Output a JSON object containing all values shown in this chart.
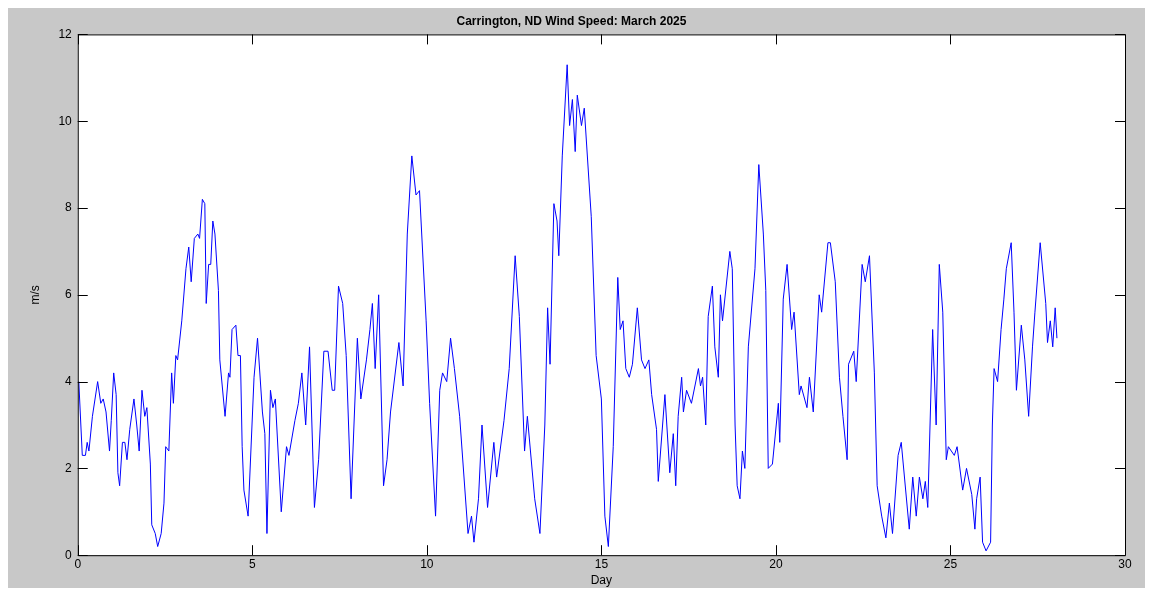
{
  "chart_data": {
    "type": "line",
    "title": "Carrington, ND Wind Speed: March 2025",
    "xlabel": "Day",
    "ylabel": "m/s",
    "xlim": [
      0,
      30
    ],
    "ylim": [
      0,
      12
    ],
    "xticks": [
      0,
      5,
      10,
      15,
      20,
      25,
      30
    ],
    "yticks": [
      0,
      2,
      4,
      6,
      8,
      10,
      12
    ],
    "grid": false,
    "series": [
      {
        "color": "#0000ff",
        "x": [
          0.03,
          0.13,
          0.22,
          0.27,
          0.32,
          0.42,
          0.57,
          0.66,
          0.73,
          0.81,
          0.91,
          0.96,
          1.03,
          1.1,
          1.15,
          1.2,
          1.28,
          1.35,
          1.41,
          1.49,
          1.61,
          1.69,
          1.76,
          1.84,
          1.92,
          1.98,
          2.08,
          2.12,
          2.22,
          2.29,
          2.39,
          2.47,
          2.52,
          2.61,
          2.69,
          2.74,
          2.81,
          2.86,
          2.98,
          3.1,
          3.18,
          3.25,
          3.34,
          3.44,
          3.49,
          3.57,
          3.64,
          3.68,
          3.75,
          3.81,
          3.87,
          3.93,
          4.03,
          4.07,
          4.22,
          4.32,
          4.36,
          4.42,
          4.53,
          4.59,
          4.66,
          4.71,
          4.76,
          4.88,
          5.05,
          5.15,
          5.29,
          5.36,
          5.42,
          5.52,
          5.59,
          5.66,
          5.83,
          5.98,
          6.05,
          6.22,
          6.32,
          6.42,
          6.53,
          6.64,
          6.78,
          6.9,
          7.05,
          7.17,
          7.29,
          7.36,
          7.47,
          7.59,
          7.69,
          7.83,
          8.01,
          8.11,
          8.27,
          8.37,
          8.44,
          8.52,
          8.62,
          8.76,
          8.86,
          8.96,
          9.2,
          9.32,
          9.44,
          9.57,
          9.69,
          9.79,
          9.98,
          10.08,
          10.25,
          10.37,
          10.45,
          10.57,
          10.68,
          10.79,
          10.94,
          11.18,
          11.28,
          11.35,
          11.48,
          11.58,
          11.74,
          11.92,
          12.0,
          12.21,
          12.36,
          12.53,
          12.65,
          12.8,
          12.88,
          13.09,
          13.24,
          13.38,
          13.46,
          13.53,
          13.64,
          13.73,
          13.78,
          13.88,
          14.02,
          14.09,
          14.17,
          14.25,
          14.31,
          14.43,
          14.51,
          14.71,
          14.85,
          15.0,
          15.1,
          15.2,
          15.34,
          15.47,
          15.54,
          15.62,
          15.7,
          15.8,
          15.89,
          16.03,
          16.15,
          16.25,
          16.36,
          16.44,
          16.58,
          16.63,
          16.82,
          16.96,
          17.06,
          17.13,
          17.2,
          17.3,
          17.35,
          17.44,
          17.58,
          17.78,
          17.84,
          17.9,
          17.99,
          18.06,
          18.18,
          18.25,
          18.35,
          18.41,
          18.47,
          18.68,
          18.75,
          18.83,
          18.89,
          18.97,
          19.04,
          19.11,
          19.21,
          19.4,
          19.51,
          19.64,
          19.71,
          19.78,
          19.9,
          20.07,
          20.11,
          20.21,
          20.32,
          20.45,
          20.52,
          20.67,
          20.72,
          20.89,
          20.96,
          21.07,
          21.24,
          21.31,
          21.49,
          21.56,
          21.7,
          21.82,
          21.92,
          22.04,
          22.08,
          22.23,
          22.3,
          22.47,
          22.56,
          22.68,
          22.82,
          22.9,
          23.03,
          23.15,
          23.25,
          23.34,
          23.5,
          23.59,
          23.82,
          23.92,
          24.02,
          24.11,
          24.21,
          24.28,
          24.35,
          24.49,
          24.59,
          24.68,
          24.78,
          24.88,
          24.94,
          25.11,
          25.19,
          25.35,
          25.46,
          25.61,
          25.7,
          25.75,
          25.85,
          25.92,
          26.02,
          26.15,
          26.2,
          26.25,
          26.35,
          26.45,
          26.53,
          26.6,
          26.74,
          26.82,
          26.89,
          27.03,
          27.13,
          27.24,
          27.35,
          27.42,
          27.57,
          27.73,
          27.78,
          27.86,
          27.93,
          28.0,
          28.05
        ],
        "values": [
          4.0,
          2.3,
          2.3,
          2.6,
          2.4,
          3.2,
          4.0,
          3.5,
          3.6,
          3.3,
          2.4,
          3.1,
          4.2,
          3.7,
          1.9,
          1.6,
          2.6,
          2.6,
          2.2,
          2.9,
          3.6,
          3.0,
          2.4,
          3.8,
          3.2,
          3.4,
          2.1,
          0.7,
          0.5,
          0.2,
          0.5,
          1.2,
          2.5,
          2.4,
          4.2,
          3.5,
          4.6,
          4.5,
          5.4,
          6.6,
          7.1,
          6.3,
          7.3,
          7.4,
          7.3,
          8.2,
          8.1,
          5.8,
          6.7,
          6.7,
          7.7,
          7.4,
          6.1,
          4.5,
          3.2,
          4.2,
          4.1,
          5.2,
          5.3,
          4.6,
          4.6,
          2.5,
          1.5,
          0.9,
          4.1,
          5.0,
          3.3,
          2.8,
          0.5,
          3.8,
          3.4,
          3.6,
          1.0,
          2.5,
          2.3,
          3.1,
          3.5,
          4.2,
          3.0,
          4.8,
          1.1,
          2.2,
          4.7,
          4.7,
          3.8,
          3.8,
          6.2,
          5.8,
          4.6,
          1.3,
          5.0,
          3.6,
          4.5,
          5.2,
          5.8,
          4.3,
          6.0,
          1.6,
          2.2,
          3.3,
          4.9,
          3.9,
          7.4,
          9.2,
          8.3,
          8.4,
          5.4,
          3.5,
          0.9,
          3.8,
          4.2,
          4.0,
          5.0,
          4.3,
          3.2,
          0.5,
          0.9,
          0.3,
          1.3,
          3.0,
          1.1,
          2.6,
          1.8,
          3.1,
          4.3,
          6.9,
          5.5,
          2.4,
          3.2,
          1.3,
          0.5,
          3.0,
          5.7,
          4.4,
          8.1,
          7.7,
          6.9,
          9.2,
          11.3,
          9.9,
          10.5,
          9.3,
          10.6,
          9.9,
          10.3,
          7.8,
          4.6,
          3.6,
          0.9,
          0.2,
          2.5,
          6.4,
          5.2,
          5.4,
          4.3,
          4.1,
          4.4,
          5.7,
          4.5,
          4.3,
          4.5,
          3.7,
          2.9,
          1.7,
          3.7,
          1.9,
          2.8,
          1.6,
          3.2,
          4.1,
          3.3,
          3.8,
          3.5,
          4.3,
          3.9,
          4.1,
          3.0,
          5.5,
          6.2,
          4.8,
          4.1,
          6.0,
          5.4,
          7.0,
          6.6,
          3.0,
          1.6,
          1.3,
          2.4,
          2.0,
          4.8,
          6.6,
          9.0,
          7.4,
          6.1,
          2.0,
          2.1,
          3.5,
          2.6,
          5.9,
          6.7,
          5.2,
          5.6,
          3.7,
          3.9,
          3.4,
          4.1,
          3.3,
          6.0,
          5.6,
          7.2,
          7.2,
          6.3,
          4.1,
          3.2,
          2.2,
          4.4,
          4.7,
          4.0,
          6.7,
          6.3,
          6.9,
          4.2,
          1.6,
          0.9,
          0.4,
          1.2,
          0.5,
          2.3,
          2.6,
          0.6,
          1.8,
          0.9,
          1.8,
          1.3,
          1.7,
          1.1,
          5.2,
          3.0,
          6.7,
          5.6,
          2.2,
          2.5,
          2.3,
          2.5,
          1.5,
          2.0,
          1.4,
          0.6,
          1.3,
          1.8,
          0.3,
          0.1,
          0.3,
          3.0,
          4.3,
          4.0,
          5.2,
          5.9,
          6.6,
          7.2,
          5.6,
          3.8,
          5.3,
          4.5,
          3.2,
          4.8,
          5.6,
          7.2,
          5.8,
          4.9,
          5.4,
          4.8,
          5.7,
          5.0
        ]
      }
    ]
  }
}
